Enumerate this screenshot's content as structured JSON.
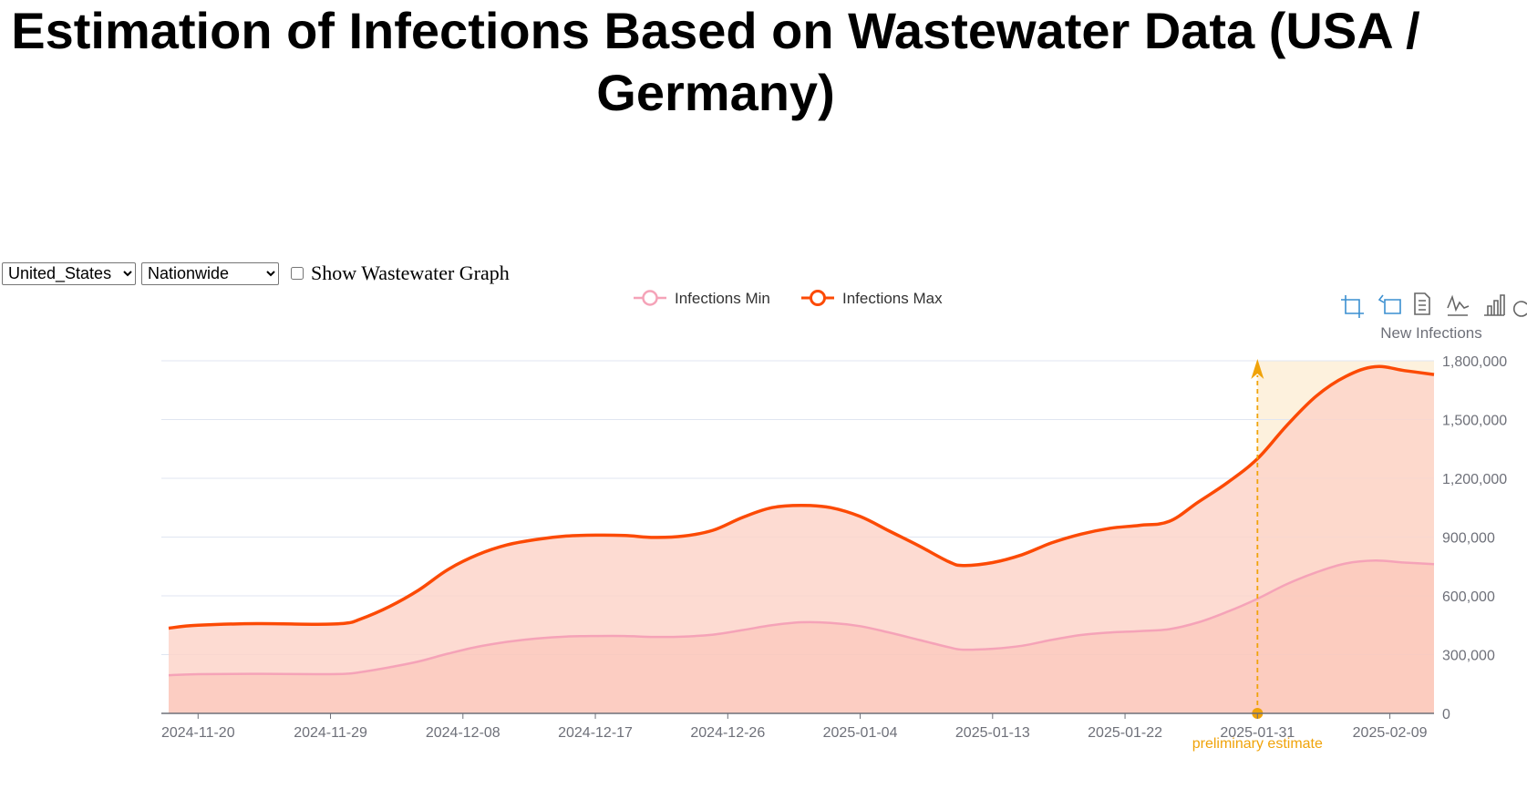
{
  "page": {
    "title": "Estimation of Infections Based on Wastewater Data (USA / Germany)"
  },
  "controls": {
    "country_value": "United_States",
    "region_value": "Nationwide",
    "wastewater_label": "Show Wastewater Graph",
    "wastewater_checked": false
  },
  "toolbar": {
    "icons": [
      "zoom-icon",
      "zoom-reset-icon",
      "data-view-icon",
      "line-chart-icon",
      "bar-chart-icon",
      "restore-icon"
    ]
  },
  "colors": {
    "min_line": "#f5a3b8",
    "max_line": "#fc4a05",
    "area": "#fcd3c8",
    "mark_area": "#fdf1dd",
    "mark_line": "#f0a30a",
    "axis": "#6e7079",
    "grid": "#e0e6f1"
  },
  "chart_data": {
    "type": "area",
    "ylabel": "New Infections",
    "ylim": [
      0,
      1800000
    ],
    "yticks": [
      0,
      300000,
      600000,
      900000,
      1200000,
      1500000,
      1800000
    ],
    "ytick_labels": [
      "0",
      "300,000",
      "600,000",
      "900,000",
      "1,200,000",
      "1,500,000",
      "1,800,000"
    ],
    "x_start": "2024-11-18",
    "x_end": "2025-02-12",
    "xticks": [
      "2024-11-20",
      "2024-11-29",
      "2024-12-08",
      "2024-12-17",
      "2024-12-26",
      "2025-01-04",
      "2025-01-13",
      "2025-01-22",
      "2025-01-31",
      "2025-02-09"
    ],
    "legend": [
      "Infections Min",
      "Infections Max"
    ],
    "grid": true,
    "legend_position": "top-center",
    "mark": {
      "date": "2025-01-31",
      "label": "preliminary estimate"
    },
    "series": [
      {
        "name": "Infections Min",
        "points": [
          [
            "2024-11-18",
            195000
          ],
          [
            "2024-11-20",
            200000
          ],
          [
            "2024-11-24",
            202000
          ],
          [
            "2024-11-28",
            200000
          ],
          [
            "2024-11-30",
            202000
          ],
          [
            "2024-12-01",
            210000
          ],
          [
            "2024-12-03",
            235000
          ],
          [
            "2024-12-05",
            265000
          ],
          [
            "2024-12-07",
            305000
          ],
          [
            "2024-12-09",
            340000
          ],
          [
            "2024-12-11",
            365000
          ],
          [
            "2024-12-13",
            382000
          ],
          [
            "2024-12-15",
            392000
          ],
          [
            "2024-12-17",
            395000
          ],
          [
            "2024-12-19",
            395000
          ],
          [
            "2024-12-21",
            390000
          ],
          [
            "2024-12-23",
            392000
          ],
          [
            "2024-12-25",
            402000
          ],
          [
            "2024-12-27",
            425000
          ],
          [
            "2024-12-29",
            450000
          ],
          [
            "2024-12-31",
            465000
          ],
          [
            "2025-01-02",
            462000
          ],
          [
            "2025-01-04",
            445000
          ],
          [
            "2025-01-06",
            412000
          ],
          [
            "2025-01-08",
            375000
          ],
          [
            "2025-01-10",
            338000
          ],
          [
            "2025-01-11",
            325000
          ],
          [
            "2025-01-13",
            330000
          ],
          [
            "2025-01-15",
            345000
          ],
          [
            "2025-01-17",
            375000
          ],
          [
            "2025-01-19",
            400000
          ],
          [
            "2025-01-21",
            413000
          ],
          [
            "2025-01-23",
            420000
          ],
          [
            "2025-01-25",
            430000
          ],
          [
            "2025-01-27",
            465000
          ],
          [
            "2025-01-29",
            520000
          ],
          [
            "2025-01-31",
            585000
          ],
          [
            "2025-02-02",
            660000
          ],
          [
            "2025-02-04",
            720000
          ],
          [
            "2025-02-06",
            765000
          ],
          [
            "2025-02-08",
            780000
          ],
          [
            "2025-02-10",
            770000
          ],
          [
            "2025-02-12",
            762000
          ]
        ]
      },
      {
        "name": "Infections Max",
        "points": [
          [
            "2024-11-18",
            435000
          ],
          [
            "2024-11-20",
            450000
          ],
          [
            "2024-11-24",
            458000
          ],
          [
            "2024-11-28",
            455000
          ],
          [
            "2024-11-30",
            460000
          ],
          [
            "2024-12-01",
            480000
          ],
          [
            "2024-12-03",
            545000
          ],
          [
            "2024-12-05",
            630000
          ],
          [
            "2024-12-07",
            735000
          ],
          [
            "2024-12-09",
            810000
          ],
          [
            "2024-12-11",
            860000
          ],
          [
            "2024-12-13",
            888000
          ],
          [
            "2024-12-15",
            905000
          ],
          [
            "2024-12-17",
            910000
          ],
          [
            "2024-12-19",
            908000
          ],
          [
            "2024-12-21",
            898000
          ],
          [
            "2024-12-23",
            905000
          ],
          [
            "2024-12-25",
            935000
          ],
          [
            "2024-12-27",
            1000000
          ],
          [
            "2024-12-29",
            1050000
          ],
          [
            "2024-12-31",
            1062000
          ],
          [
            "2025-01-02",
            1050000
          ],
          [
            "2025-01-04",
            1005000
          ],
          [
            "2025-01-06",
            930000
          ],
          [
            "2025-01-08",
            855000
          ],
          [
            "2025-01-10",
            775000
          ],
          [
            "2025-01-11",
            755000
          ],
          [
            "2025-01-13",
            770000
          ],
          [
            "2025-01-15",
            810000
          ],
          [
            "2025-01-17",
            870000
          ],
          [
            "2025-01-19",
            915000
          ],
          [
            "2025-01-21",
            945000
          ],
          [
            "2025-01-23",
            960000
          ],
          [
            "2025-01-25",
            980000
          ],
          [
            "2025-01-27",
            1080000
          ],
          [
            "2025-01-29",
            1180000
          ],
          [
            "2025-01-31",
            1300000
          ],
          [
            "2025-02-02",
            1470000
          ],
          [
            "2025-02-04",
            1620000
          ],
          [
            "2025-02-06",
            1720000
          ],
          [
            "2025-02-08",
            1770000
          ],
          [
            "2025-02-10",
            1750000
          ],
          [
            "2025-02-12",
            1730000
          ]
        ]
      }
    ]
  }
}
